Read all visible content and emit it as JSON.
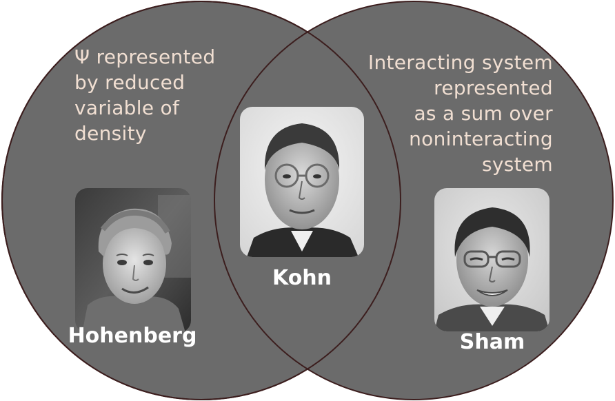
{
  "diagram": {
    "left_circle": {
      "caption": "Ψ represented\nby reduced\nvariable of\ndensity",
      "person": "Hohenberg"
    },
    "intersection": {
      "person": "Kohn"
    },
    "right_circle": {
      "caption": "Interacting system\nrepresented\nas a sum over\nnoninteracting\nsystem",
      "person": "Sham"
    }
  },
  "colors": {
    "circle_fill": "#6b6b6b",
    "circle_outline": "#3c1e1e",
    "caption_text": "#f1dfd2",
    "name_text": "#ffffff"
  }
}
